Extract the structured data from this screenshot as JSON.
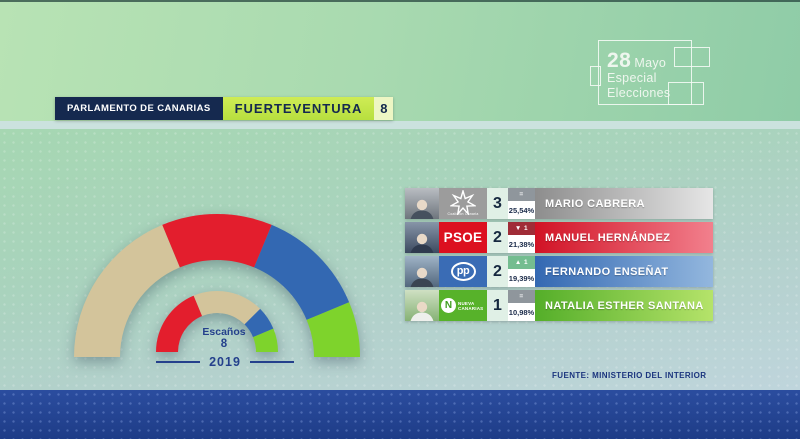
{
  "header": {
    "program_badge": {
      "day": "28",
      "month": "Mayo",
      "line2": "Especial",
      "line3": "Elecciones"
    },
    "bar": {
      "institution": "PARLAMENTO DE CANARIAS",
      "region": "FUERTEVENTURA",
      "total_seats": "8"
    }
  },
  "chart": {
    "center_label": "Escaños",
    "center_value": "8",
    "comparison_year": "2019"
  },
  "chart_data": [
    {
      "type": "hemicycle",
      "series_label": "current seats (outer arc)",
      "total": 8,
      "segments": [
        {
          "party": "Coalición Canaria",
          "seats": 3,
          "color": "#d3c49b"
        },
        {
          "party": "PSOE",
          "seats": 2,
          "color": "#e31e2d"
        },
        {
          "party": "PP",
          "seats": 2,
          "color": "#3368b2"
        },
        {
          "party": "Nueva Canarias",
          "seats": 1,
          "color": "#7ed32c"
        }
      ]
    },
    {
      "type": "hemicycle",
      "series_label": "2019 seats (inner arc)",
      "total": 8,
      "segments": [
        {
          "party": "PSOE",
          "seats": 3,
          "color": "#e31e2d"
        },
        {
          "party": "Coalición Canaria",
          "seats": 3,
          "color": "#d3c49b"
        },
        {
          "party": "PP",
          "seats": 1,
          "color": "#3368b2"
        },
        {
          "party": "Nueva Canarias",
          "seats": 1,
          "color": "#7ed32c"
        }
      ]
    }
  ],
  "results": {
    "rows": [
      {
        "party": "Coalición Canaria",
        "logo_text": "Coalición Canaria",
        "seats": "3",
        "change": "=",
        "pct": "25,54%",
        "candidate": "MARIO CABRERA",
        "colors": {
          "logo_bg": "#9c9c9c",
          "bar_from": "#8d8d8d",
          "bar_to": "#e6e6e6",
          "change_bg": "#8f969c",
          "photo_bg": "linear-gradient(180deg,#b9bdc2,#6e757d)"
        }
      },
      {
        "party": "PSOE",
        "logo_text": "PSOE",
        "seats": "2",
        "change": "▼ 1",
        "pct": "21,38%",
        "candidate": "MANUEL HERNÁNDEZ",
        "colors": {
          "logo_bg": "#dc101f",
          "bar_from": "#d11225",
          "bar_to": "#f2808d",
          "change_bg": "#a02c37",
          "photo_bg": "linear-gradient(180deg,#8795a8,#3c4a60)"
        }
      },
      {
        "party": "PP",
        "logo_text": "pp",
        "seats": "2",
        "change": "▲ 1",
        "pct": "19,39%",
        "candidate": "FERNANDO ENSEÑAT",
        "colors": {
          "logo_bg": "#3a6cb5",
          "bar_from": "#3368b2",
          "bar_to": "#93b7de",
          "change_bg": "#74bd90",
          "photo_bg": "linear-gradient(180deg,#9fb3c6,#52677d)"
        }
      },
      {
        "party": "Nueva Canarias",
        "logo_text": "NUEVA CANARIAS",
        "logo_initial": "N",
        "seats": "1",
        "change": "=",
        "pct": "10,98%",
        "candidate": "NATALIA ESTHER SANTANA",
        "colors": {
          "logo_bg": "#57b22a",
          "bar_from": "#54ae29",
          "bar_to": "#b5e36a",
          "change_bg": "#8f969c",
          "photo_bg": "linear-gradient(180deg,#cfe0c3,#86b275)"
        }
      }
    ]
  },
  "footer": {
    "source": "FUENTE: MINISTERIO DEL INTERIOR"
  }
}
